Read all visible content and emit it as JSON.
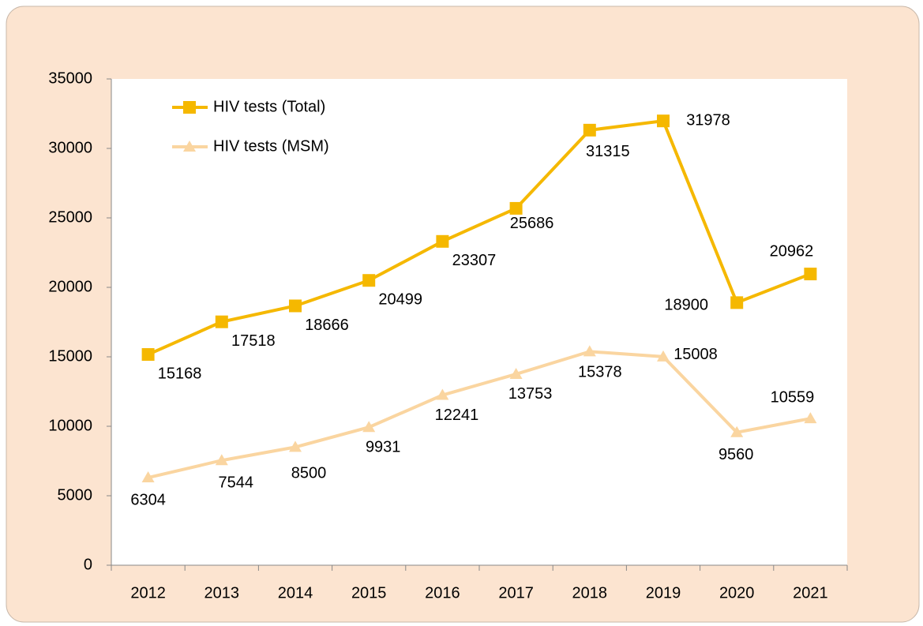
{
  "chart_data": {
    "type": "line",
    "categories": [
      "2012",
      "2013",
      "2014",
      "2015",
      "2016",
      "2017",
      "2018",
      "2019",
      "2020",
      "2021"
    ],
    "series": [
      {
        "name": "HIV tests (Total)",
        "color": "#f5b800",
        "marker": "square",
        "values": [
          15168,
          17518,
          18666,
          20499,
          23307,
          25686,
          31315,
          31978,
          18900,
          20962
        ]
      },
      {
        "name": "HIV tests (MSM)",
        "color": "#fad5a0",
        "marker": "triangle",
        "values": [
          6304,
          7544,
          8500,
          9931,
          12241,
          13753,
          15378,
          15008,
          9560,
          10559
        ]
      }
    ],
    "ylim": [
      0,
      35000
    ],
    "yticks": [
      0,
      5000,
      10000,
      15000,
      20000,
      25000,
      30000,
      35000
    ],
    "legend": "upper left",
    "grid": false
  }
}
